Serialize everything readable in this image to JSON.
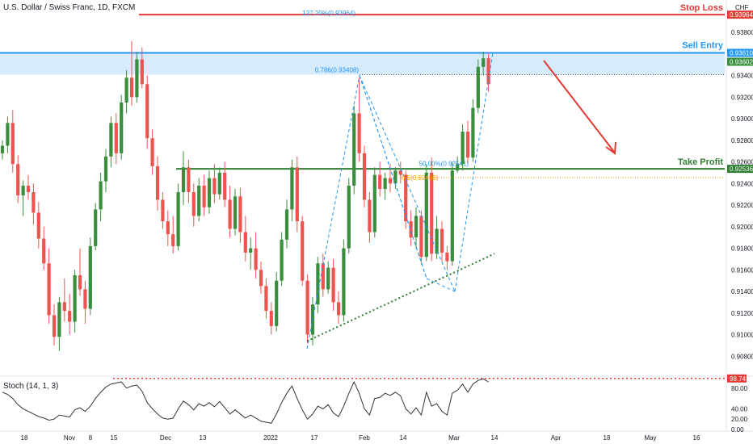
{
  "header": {
    "title": "U.S. Dollar / Swiss Franc, 1D, FXCM"
  },
  "currency_label": "CHF",
  "colors": {
    "up": "#388e3c",
    "down": "#ef5350",
    "stop": "#e53935",
    "entry": "#2196f3",
    "entry_zone": "#d6ebfb",
    "take": "#2e7d32",
    "axis_text": "#131722",
    "fib": "#2196f3",
    "fib_orange": "#ff9800"
  },
  "chart_data": [
    {
      "type": "candlestick",
      "title": "U.S. Dollar / Swiss Franc, 1D, FXCM",
      "ylim": [
        0.9066,
        0.9404
      ],
      "y_ticks": [
        "0.93800",
        "0.93600",
        "0.93400",
        "0.93200",
        "0.93000",
        "0.92800",
        "0.92600",
        "0.92400",
        "0.92200",
        "0.92000",
        "0.91800",
        "0.91600",
        "0.91400",
        "0.91200",
        "0.91000",
        "0.90800"
      ],
      "x_ticks": [
        "18",
        "Nov",
        "8",
        "15",
        "Dec",
        "13",
        "2022",
        "17",
        "Feb",
        "14",
        "Mar",
        "14",
        "Apr",
        "18",
        "May",
        "16"
      ],
      "candles": [
        [
          0.9268,
          0.928,
          0.9262,
          0.9275
        ],
        [
          0.9275,
          0.9302,
          0.9268,
          0.9296
        ],
        [
          0.9296,
          0.9308,
          0.925,
          0.9258
        ],
        [
          0.9258,
          0.9266,
          0.9222,
          0.9229
        ],
        [
          0.9229,
          0.9243,
          0.921,
          0.9238
        ],
        [
          0.9238,
          0.9248,
          0.9225,
          0.9232
        ],
        [
          0.9232,
          0.924,
          0.9202,
          0.9213
        ],
        [
          0.9213,
          0.9223,
          0.918,
          0.9189
        ],
        [
          0.9189,
          0.92,
          0.916,
          0.9166
        ],
        [
          0.9166,
          0.918,
          0.911,
          0.9118
        ],
        [
          0.9118,
          0.9128,
          0.909,
          0.9098
        ],
        [
          0.9098,
          0.9135,
          0.9085,
          0.913
        ],
        [
          0.913,
          0.9152,
          0.9112,
          0.9122
        ],
        [
          0.9122,
          0.9138,
          0.91,
          0.9112
        ],
        [
          0.9112,
          0.916,
          0.9102,
          0.9155
        ],
        [
          0.9155,
          0.918,
          0.9136,
          0.9142
        ],
        [
          0.9142,
          0.915,
          0.911,
          0.9124
        ],
        [
          0.9124,
          0.919,
          0.9118,
          0.9182
        ],
        [
          0.9182,
          0.9222,
          0.9178,
          0.9216
        ],
        [
          0.9216,
          0.925,
          0.9205,
          0.9242
        ],
        [
          0.9242,
          0.9272,
          0.9232,
          0.9265
        ],
        [
          0.9265,
          0.9302,
          0.9255,
          0.9296
        ],
        [
          0.9296,
          0.9305,
          0.9258,
          0.9268
        ],
        [
          0.9268,
          0.9322,
          0.9262,
          0.9315
        ],
        [
          0.9315,
          0.9345,
          0.9305,
          0.9338
        ],
        [
          0.9338,
          0.9372,
          0.9312,
          0.932
        ],
        [
          0.932,
          0.9362,
          0.9315,
          0.9355
        ],
        [
          0.9355,
          0.9366,
          0.9328,
          0.9332
        ],
        [
          0.9332,
          0.934,
          0.9272,
          0.9282
        ],
        [
          0.9282,
          0.929,
          0.9248,
          0.9256
        ],
        [
          0.9256,
          0.9265,
          0.9215,
          0.9225
        ],
        [
          0.9225,
          0.9232,
          0.9198,
          0.9205
        ],
        [
          0.9205,
          0.9215,
          0.9182,
          0.9193
        ],
        [
          0.9193,
          0.921,
          0.9175,
          0.9182
        ],
        [
          0.9182,
          0.924,
          0.9178,
          0.9232
        ],
        [
          0.9232,
          0.927,
          0.922,
          0.9255
        ],
        [
          0.9255,
          0.9262,
          0.9222,
          0.9232
        ],
        [
          0.9232,
          0.924,
          0.92,
          0.921
        ],
        [
          0.921,
          0.9245,
          0.9205,
          0.9238
        ],
        [
          0.9238,
          0.9248,
          0.921,
          0.9218
        ],
        [
          0.9218,
          0.9252,
          0.9212,
          0.9245
        ],
        [
          0.9245,
          0.9258,
          0.9222,
          0.923
        ],
        [
          0.923,
          0.9255,
          0.9225,
          0.925
        ],
        [
          0.925,
          0.926,
          0.9218,
          0.9225
        ],
        [
          0.9225,
          0.9238,
          0.919,
          0.9198
        ],
        [
          0.9198,
          0.9235,
          0.9192,
          0.9228
        ],
        [
          0.9228,
          0.9236,
          0.9185,
          0.9195
        ],
        [
          0.9195,
          0.921,
          0.9168,
          0.9176
        ],
        [
          0.9176,
          0.919,
          0.916,
          0.918
        ],
        [
          0.918,
          0.9195,
          0.9152,
          0.916
        ],
        [
          0.916,
          0.9168,
          0.9138,
          0.9145
        ],
        [
          0.9145,
          0.9152,
          0.9115,
          0.9122
        ],
        [
          0.9122,
          0.913,
          0.91,
          0.9108
        ],
        [
          0.9108,
          0.9158,
          0.9103,
          0.915
        ],
        [
          0.915,
          0.9195,
          0.9145,
          0.9188
        ],
        [
          0.9188,
          0.9225,
          0.918,
          0.9216
        ],
        [
          0.9216,
          0.9262,
          0.9205,
          0.9255
        ],
        [
          0.9255,
          0.9265,
          0.9195,
          0.9205
        ],
        [
          0.9205,
          0.921,
          0.9145,
          0.915
        ],
        [
          0.915,
          0.9156,
          0.9092,
          0.91
        ],
        [
          0.91,
          0.9135,
          0.909,
          0.9128
        ],
        [
          0.9128,
          0.9172,
          0.912,
          0.9166
        ],
        [
          0.9166,
          0.9175,
          0.9135,
          0.9142
        ],
        [
          0.9142,
          0.9168,
          0.9138,
          0.9162
        ],
        [
          0.9162,
          0.917,
          0.9122,
          0.913
        ],
        [
          0.913,
          0.914,
          0.911,
          0.9118
        ],
        [
          0.9118,
          0.9188,
          0.9112,
          0.918
        ],
        [
          0.918,
          0.9245,
          0.9175,
          0.9238
        ],
        [
          0.9238,
          0.9312,
          0.923,
          0.9305
        ],
        [
          0.9305,
          0.9338,
          0.926,
          0.9268
        ],
        [
          0.9268,
          0.9275,
          0.9218,
          0.9225
        ],
        [
          0.9225,
          0.9232,
          0.9185,
          0.9195
        ],
        [
          0.9195,
          0.9255,
          0.919,
          0.9248
        ],
        [
          0.9248,
          0.926,
          0.9228,
          0.9235
        ],
        [
          0.9235,
          0.925,
          0.9225,
          0.9245
        ],
        [
          0.9245,
          0.9258,
          0.9232,
          0.924
        ],
        [
          0.924,
          0.9255,
          0.9235,
          0.9252
        ],
        [
          0.9252,
          0.926,
          0.924,
          0.9248
        ],
        [
          0.9248,
          0.9252,
          0.9198,
          0.9205
        ],
        [
          0.9205,
          0.9215,
          0.9182,
          0.919
        ],
        [
          0.919,
          0.9218,
          0.918,
          0.921
        ],
        [
          0.921,
          0.9215,
          0.9165,
          0.9172
        ],
        [
          0.9172,
          0.9258,
          0.9168,
          0.925
        ],
        [
          0.925,
          0.9264,
          0.9168,
          0.9175
        ],
        [
          0.9175,
          0.921,
          0.917,
          0.9198
        ],
        [
          0.9198,
          0.9205,
          0.9168,
          0.9176
        ],
        [
          0.9176,
          0.9182,
          0.916,
          0.9168
        ],
        [
          0.9168,
          0.926,
          0.9164,
          0.9252
        ],
        [
          0.9252,
          0.9265,
          0.925,
          0.9258
        ],
        [
          0.9258,
          0.9295,
          0.9252,
          0.9288
        ],
        [
          0.9288,
          0.9298,
          0.9258,
          0.9264
        ],
        [
          0.9264,
          0.9318,
          0.926,
          0.931
        ],
        [
          0.931,
          0.9355,
          0.9305,
          0.9348
        ],
        [
          0.9348,
          0.9362,
          0.934,
          0.9356
        ],
        [
          0.9356,
          0.936,
          0.9325,
          0.9332
        ]
      ],
      "levels": [
        {
          "name": "Stop Loss",
          "value": 0.93964,
          "price_label": "0.93964",
          "style": "solid"
        },
        {
          "name": "Sell Entry",
          "value": 0.9361,
          "price_label": "0.93610",
          "style": "solid"
        },
        {
          "name": "Take Profit",
          "value": 0.92536,
          "price_label": "0.92536",
          "style": "solid"
        }
      ],
      "current_price_label": "0.93602",
      "annotations": [
        {
          "text": "0.786(0.93408)",
          "value": 0.93408
        },
        {
          "text": "50.00%(0.92541)",
          "value": 0.92541
        },
        {
          "text": "0.5(0.92456)",
          "value": 0.92456
        },
        {
          "text": "127.20%(0.93964)",
          "value": 0.93964
        }
      ]
    },
    {
      "type": "line",
      "title": "Stoch (14, 1, 3)",
      "ylim": [
        0,
        100
      ],
      "y_ticks": [
        "80.00",
        "40.00",
        "20.00",
        "0.00"
      ],
      "overbought": 98.74,
      "current_label": "98.74",
      "values": [
        72,
        68,
        60,
        48,
        40,
        35,
        30,
        25,
        22,
        18,
        20,
        28,
        26,
        24,
        38,
        42,
        35,
        45,
        60,
        72,
        82,
        88,
        90,
        92,
        80,
        84,
        86,
        74,
        52,
        40,
        30,
        22,
        20,
        22,
        40,
        55,
        48,
        38,
        50,
        45,
        52,
        44,
        54,
        42,
        30,
        38,
        30,
        22,
        28,
        22,
        16,
        14,
        12,
        30,
        52,
        70,
        84,
        60,
        38,
        20,
        30,
        45,
        40,
        48,
        32,
        25,
        45,
        70,
        92,
        70,
        40,
        28,
        60,
        62,
        70,
        66,
        72,
        65,
        40,
        30,
        42,
        28,
        72,
        45,
        50,
        35,
        28,
        70,
        76,
        88,
        72,
        88,
        95,
        98,
        92
      ]
    }
  ]
}
